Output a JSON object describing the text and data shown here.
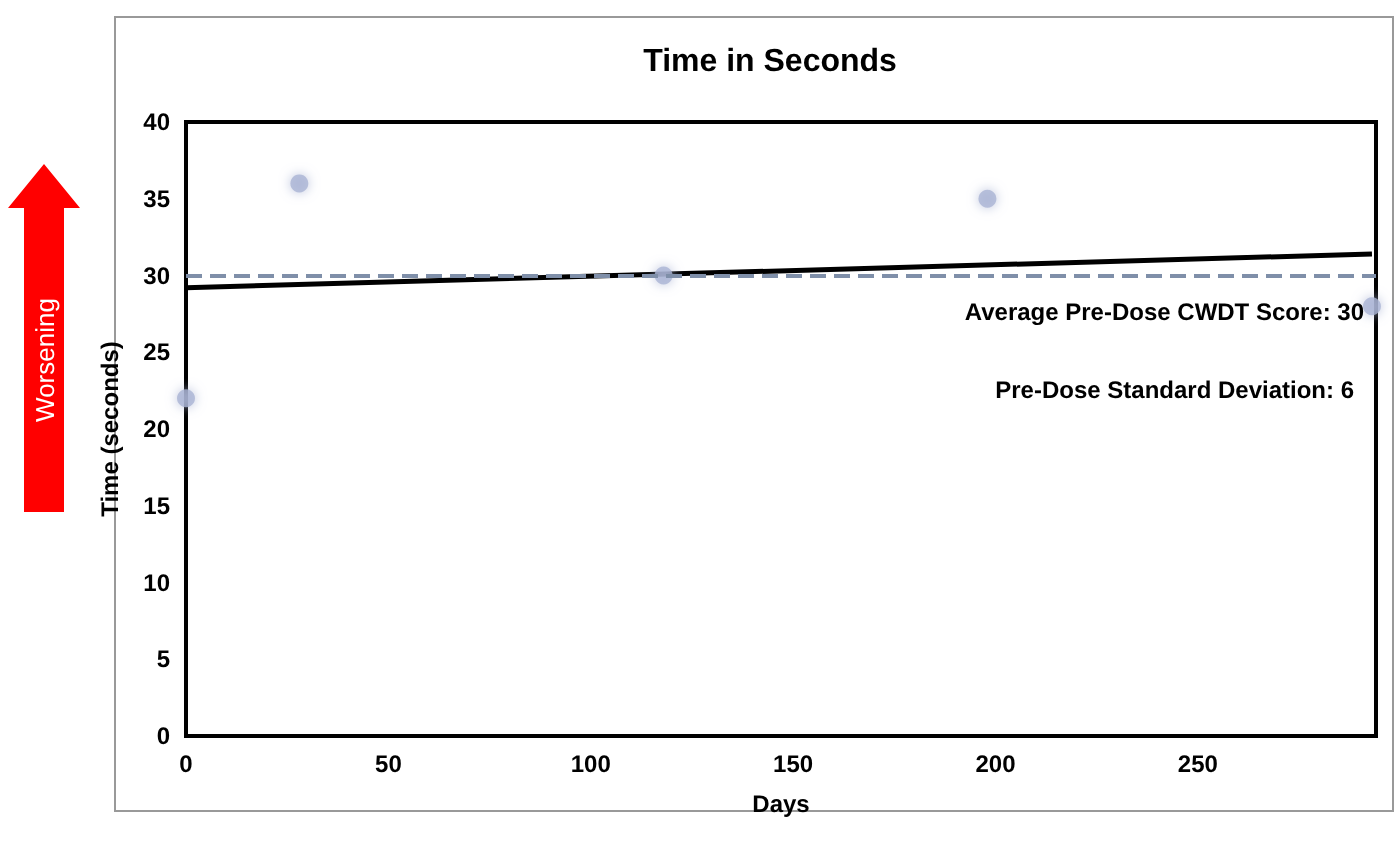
{
  "chart_data": {
    "type": "scatter",
    "title": "Time in Seconds",
    "xlabel": "Days",
    "ylabel": "Time (seconds)",
    "annotations": [
      "Pre-Dose Standard Deviation: 6",
      "Worsening"
    ],
    "series": [
      {
        "color": "#aab4d4",
        "marker": "circle",
        "x": [
          0,
          28,
          118,
          198,
          293
        ],
        "values": [
          22,
          36,
          30,
          35,
          28
        ]
      },
      {
        "type": "line",
        "color": "#000000",
        "x": [
          0,
          293
        ],
        "values": [
          29.2,
          31.4
        ],
        "line_style": "solid"
      }
    ],
    "ref_lines": [
      {
        "axis": "y",
        "value": 30,
        "label": "Average Pre-Dose CWDT Score: 30",
        "color": "#7f8fa9",
        "line_style": "dashed"
      }
    ],
    "xlim": [
      0,
      294
    ],
    "xticks": [
      0,
      50,
      100,
      150,
      200,
      250
    ],
    "ylim": [
      0,
      40
    ],
    "yticks": [
      0,
      5,
      10,
      15,
      20,
      25,
      30,
      35,
      40
    ],
    "grid": false
  }
}
